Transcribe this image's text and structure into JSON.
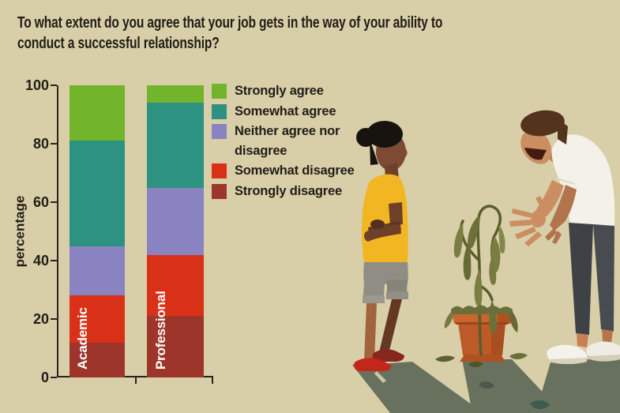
{
  "background_color": "#d8cfa9",
  "title": {
    "text": "To what extent do you agree that your job gets in the way of your ability to conduct a successful relationship?",
    "lines": [
      "To what extent do you agree that your job gets in the way of your ability to",
      "conduct a successful relationship?"
    ]
  },
  "chart_data": {
    "type": "bar",
    "stacked": true,
    "title": "",
    "xlabel": "",
    "ylabel": "percentage",
    "ylim": [
      0,
      100
    ],
    "yticks": [
      0,
      20,
      40,
      60,
      80,
      100
    ],
    "grid": false,
    "categories": [
      "Academic",
      "Professional"
    ],
    "series": [
      {
        "name": "Strongly disagree",
        "color": "#9e352a",
        "values": [
          12,
          21
        ]
      },
      {
        "name": "Somewhat disagree",
        "color": "#d93018",
        "values": [
          16,
          21
        ]
      },
      {
        "name": "Neither agree nor disagree",
        "color": "#8983c1",
        "values": [
          17,
          23
        ]
      },
      {
        "name": "Somewhat agree",
        "color": "#2d9282",
        "values": [
          36,
          29
        ]
      },
      {
        "name": "Strongly agree",
        "color": "#72b52c",
        "values": [
          19,
          6
        ]
      }
    ],
    "legend": {
      "position": "right-top",
      "order": [
        "Strongly agree",
        "Somewhat agree",
        "Neither agree nor disagree",
        "Somewhat disagree",
        "Strongly disagree"
      ]
    }
  },
  "illustration": {
    "scene": "Woman with crossed arms and a man gesturing in dismay at a wilting potted plant",
    "elements": [
      "woman-figure",
      "man-figure",
      "wilting-plant",
      "terracotta-pot",
      "fallen-leaves",
      "cast-shadows"
    ]
  }
}
